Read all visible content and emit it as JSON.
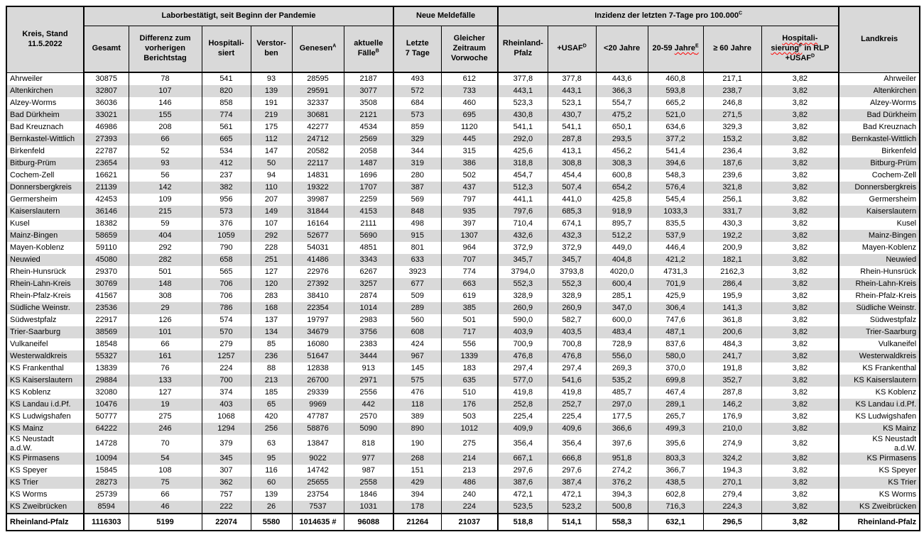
{
  "colors": {
    "header_bg": "#d9d9d9",
    "stripe_bg": "#d9d9d9",
    "border": "#000000",
    "squiggle": "#ff0000",
    "text": "#000000"
  },
  "table": {
    "corner": "Kreis, Stand\n11.5.2022",
    "groups": {
      "labor": "Laborbestätigt, seit Beginn der Pandemie",
      "melde": "Neue Meldefälle",
      "inzidenz": {
        "text": "Inzidenz der letzten 7-Tage pro 100.000",
        "sup": "C"
      }
    },
    "columns": {
      "gesamt": "Gesamt",
      "differenz": "Differenz zum\nvorherigen\nBerichtstag",
      "hospitalisiert": "Hospitali-\nsiert",
      "verstorben": "Verstor-\nben",
      "genesen": {
        "text": "Genesen",
        "sup": "A"
      },
      "aktuelle": {
        "text": "aktuelle\nFälle",
        "sup": "B"
      },
      "letzte7": "Letzte\n7 Tage",
      "vorwoche": "Gleicher\nZeitraum\nVorwoche",
      "rlp": "Rheinland-\nPfalz",
      "usaf": {
        "text": "+USAF",
        "sup": "D"
      },
      "u20": "<20 Jahre",
      "j2059": {
        "text": "20-59 ",
        "wavy": "Jahre",
        "sup": "E"
      },
      "j60": "≥ 60 Jahre",
      "hosp_rlp": {
        "wavy1": "Hospitali-",
        "wavy2": "sierung",
        "sup1": "F",
        "rest": " in RLP",
        "line2": "+USAF",
        "sup2": "D"
      },
      "landkreis": "Landkreis"
    },
    "rows": [
      [
        "Ahrweiler",
        "30875",
        "78",
        "541",
        "93",
        "28595",
        "2187",
        "493",
        "612",
        "377,8",
        "377,8",
        "443,6",
        "460,8",
        "217,1",
        "3,82"
      ],
      [
        "Altenkirchen",
        "32807",
        "107",
        "820",
        "139",
        "29591",
        "3077",
        "572",
        "733",
        "443,1",
        "443,1",
        "366,3",
        "593,8",
        "238,7",
        "3,82"
      ],
      [
        "Alzey-Worms",
        "36036",
        "146",
        "858",
        "191",
        "32337",
        "3508",
        "684",
        "460",
        "523,3",
        "523,1",
        "554,7",
        "665,2",
        "246,8",
        "3,82"
      ],
      [
        "Bad Dürkheim",
        "33021",
        "155",
        "774",
        "219",
        "30681",
        "2121",
        "573",
        "695",
        "430,8",
        "430,7",
        "475,2",
        "521,0",
        "271,5",
        "3,82"
      ],
      [
        "Bad Kreuznach",
        "46986",
        "208",
        "561",
        "175",
        "42277",
        "4534",
        "859",
        "1120",
        "541,1",
        "541,1",
        "650,1",
        "634,6",
        "329,3",
        "3,82"
      ],
      [
        "Bernkastel-Wittlich",
        "27393",
        "66",
        "665",
        "112",
        "24712",
        "2569",
        "329",
        "445",
        "292,0",
        "287,8",
        "293,5",
        "377,2",
        "153,2",
        "3,82"
      ],
      [
        "Birkenfeld",
        "22787",
        "52",
        "534",
        "147",
        "20582",
        "2058",
        "344",
        "315",
        "425,6",
        "413,1",
        "456,2",
        "541,4",
        "236,4",
        "3,82"
      ],
      [
        "Bitburg-Prüm",
        "23654",
        "93",
        "412",
        "50",
        "22117",
        "1487",
        "319",
        "386",
        "318,8",
        "308,8",
        "308,3",
        "394,6",
        "187,6",
        "3,82"
      ],
      [
        "Cochem-Zell",
        "16621",
        "56",
        "237",
        "94",
        "14831",
        "1696",
        "280",
        "502",
        "454,7",
        "454,4",
        "600,8",
        "548,3",
        "239,6",
        "3,82"
      ],
      [
        "Donnersbergkreis",
        "21139",
        "142",
        "382",
        "110",
        "19322",
        "1707",
        "387",
        "437",
        "512,3",
        "507,4",
        "654,2",
        "576,4",
        "321,8",
        "3,82"
      ],
      [
        "Germersheim",
        "42453",
        "109",
        "956",
        "207",
        "39987",
        "2259",
        "569",
        "797",
        "441,1",
        "441,0",
        "425,8",
        "545,4",
        "256,1",
        "3,82"
      ],
      [
        "Kaiserslautern",
        "36146",
        "215",
        "573",
        "149",
        "31844",
        "4153",
        "848",
        "935",
        "797,6",
        "685,3",
        "918,9",
        "1033,3",
        "331,7",
        "3,82"
      ],
      [
        "Kusel",
        "18382",
        "59",
        "376",
        "107",
        "16164",
        "2111",
        "498",
        "397",
        "710,4",
        "674,1",
        "895,7",
        "835,5",
        "430,3",
        "3,82"
      ],
      [
        "Mainz-Bingen",
        "58659",
        "404",
        "1059",
        "292",
        "52677",
        "5690",
        "915",
        "1307",
        "432,6",
        "432,3",
        "512,2",
        "537,9",
        "192,2",
        "3,82"
      ],
      [
        "Mayen-Koblenz",
        "59110",
        "292",
        "790",
        "228",
        "54031",
        "4851",
        "801",
        "964",
        "372,9",
        "372,9",
        "449,0",
        "446,4",
        "200,9",
        "3,82"
      ],
      [
        "Neuwied",
        "45080",
        "282",
        "658",
        "251",
        "41486",
        "3343",
        "633",
        "707",
        "345,7",
        "345,7",
        "404,8",
        "421,2",
        "182,1",
        "3,82"
      ],
      [
        "Rhein-Hunsrück",
        "29370",
        "501",
        "565",
        "127",
        "22976",
        "6267",
        "3923",
        "774",
        "3794,0",
        "3793,8",
        "4020,0",
        "4731,3",
        "2162,3",
        "3,82"
      ],
      [
        "Rhein-Lahn-Kreis",
        "30769",
        "148",
        "706",
        "120",
        "27392",
        "3257",
        "677",
        "663",
        "552,3",
        "552,3",
        "600,4",
        "701,9",
        "286,4",
        "3,82"
      ],
      [
        "Rhein-Pfalz-Kreis",
        "41567",
        "308",
        "706",
        "283",
        "38410",
        "2874",
        "509",
        "619",
        "328,9",
        "328,9",
        "285,1",
        "425,9",
        "195,9",
        "3,82"
      ],
      [
        "Südliche Weinstr.",
        "23536",
        "29",
        "786",
        "168",
        "22354",
        "1014",
        "289",
        "385",
        "260,9",
        "260,9",
        "347,0",
        "306,4",
        "141,3",
        "3,82"
      ],
      [
        "Südwestpfalz",
        "22917",
        "126",
        "574",
        "137",
        "19797",
        "2983",
        "560",
        "501",
        "590,0",
        "582,7",
        "600,0",
        "747,6",
        "361,8",
        "3,82"
      ],
      [
        "Trier-Saarburg",
        "38569",
        "101",
        "570",
        "134",
        "34679",
        "3756",
        "608",
        "717",
        "403,9",
        "403,5",
        "483,4",
        "487,1",
        "200,6",
        "3,82"
      ],
      [
        "Vulkaneifel",
        "18548",
        "66",
        "279",
        "85",
        "16080",
        "2383",
        "424",
        "556",
        "700,9",
        "700,8",
        "728,9",
        "837,6",
        "484,3",
        "3,82"
      ],
      [
        "Westerwaldkreis",
        "55327",
        "161",
        "1257",
        "236",
        "51647",
        "3444",
        "967",
        "1339",
        "476,8",
        "476,8",
        "556,0",
        "580,0",
        "241,7",
        "3,82"
      ],
      [
        "KS Frankenthal",
        "13839",
        "76",
        "224",
        "88",
        "12838",
        "913",
        "145",
        "183",
        "297,4",
        "297,4",
        "269,3",
        "370,0",
        "191,8",
        "3,82"
      ],
      [
        "KS Kaiserslautern",
        "29884",
        "133",
        "700",
        "213",
        "26700",
        "2971",
        "575",
        "635",
        "577,0",
        "541,6",
        "535,2",
        "699,8",
        "352,7",
        "3,82"
      ],
      [
        "KS Koblenz",
        "32080",
        "127",
        "374",
        "185",
        "29339",
        "2556",
        "476",
        "510",
        "419,8",
        "419,8",
        "485,7",
        "467,4",
        "287,8",
        "3,82"
      ],
      [
        "KS Landau i.d.Pf.",
        "10476",
        "19",
        "403",
        "65",
        "9969",
        "442",
        "118",
        "176",
        "252,8",
        "252,7",
        "297,0",
        "289,1",
        "146,2",
        "3,82"
      ],
      [
        "KS Ludwigshafen",
        "50777",
        "275",
        "1068",
        "420",
        "47787",
        "2570",
        "389",
        "503",
        "225,4",
        "225,4",
        "177,5",
        "265,7",
        "176,9",
        "3,82"
      ],
      [
        "KS Mainz",
        "64222",
        "246",
        "1294",
        "256",
        "58876",
        "5090",
        "890",
        "1012",
        "409,9",
        "409,6",
        "366,6",
        "499,3",
        "210,0",
        "3,82"
      ],
      [
        "KS Neustadt\na.d.W.",
        "14728",
        "70",
        "379",
        "63",
        "13847",
        "818",
        "190",
        "275",
        "356,4",
        "356,4",
        "397,6",
        "395,6",
        "274,9",
        "3,82"
      ],
      [
        "KS Pirmasens",
        "10094",
        "54",
        "345",
        "95",
        "9022",
        "977",
        "268",
        "214",
        "667,1",
        "666,8",
        "951,8",
        "803,3",
        "324,2",
        "3,82"
      ],
      [
        "KS Speyer",
        "15845",
        "108",
        "307",
        "116",
        "14742",
        "987",
        "151",
        "213",
        "297,6",
        "297,6",
        "274,2",
        "366,7",
        "194,3",
        "3,82"
      ],
      [
        "KS Trier",
        "28273",
        "75",
        "362",
        "60",
        "25655",
        "2558",
        "429",
        "486",
        "387,6",
        "387,4",
        "376,2",
        "438,5",
        "270,1",
        "3,82"
      ],
      [
        "KS Worms",
        "25739",
        "66",
        "757",
        "139",
        "23754",
        "1846",
        "394",
        "240",
        "472,1",
        "472,1",
        "394,3",
        "602,8",
        "279,4",
        "3,82"
      ],
      [
        "KS Zweibrücken",
        "8594",
        "46",
        "222",
        "26",
        "7537",
        "1031",
        "178",
        "224",
        "523,5",
        "523,2",
        "500,8",
        "716,3",
        "224,3",
        "3,82"
      ]
    ],
    "total": [
      "Rheinland-Pfalz",
      "1116303",
      "5199",
      "22074",
      "5580",
      "1014635 #",
      "96088",
      "21264",
      "21037",
      "518,8",
      "514,1",
      "558,3",
      "632,1",
      "296,5",
      "3,82"
    ]
  }
}
